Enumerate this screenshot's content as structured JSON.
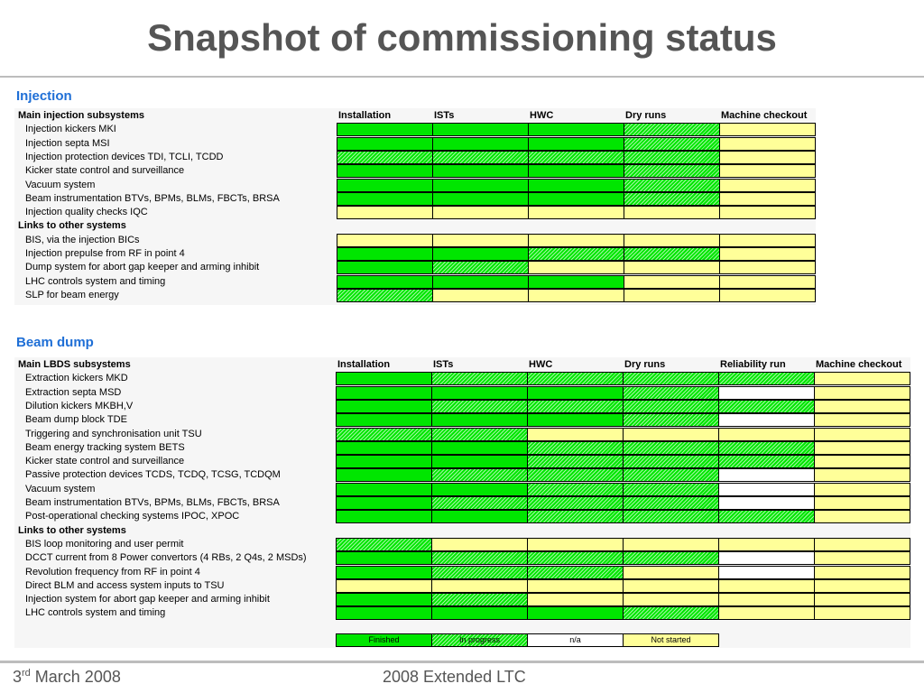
{
  "title": "Snapshot of commissioning status",
  "injection": {
    "label": "Injection",
    "header": "Main injection subsystems",
    "columns": [
      "Installation",
      "ISTs",
      "HWC",
      "Dry runs",
      "Machine checkout"
    ],
    "rows": [
      {
        "type": "item",
        "label": "Injection kickers MKI",
        "status": [
          "F",
          "F",
          "F",
          "P",
          "N"
        ]
      },
      {
        "type": "item",
        "label": "Injection septa MSI",
        "status": [
          "F",
          "F",
          "F",
          "P",
          "N"
        ]
      },
      {
        "type": "item",
        "label": "Injection protection devices TDI, TCLI, TCDD",
        "status": [
          "P",
          "P",
          "P",
          "P",
          "N"
        ]
      },
      {
        "type": "item",
        "label": "Kicker state control and surveillance",
        "status": [
          "F",
          "F",
          "F",
          "P",
          "N"
        ]
      },
      {
        "type": "item",
        "label": "Vacuum system",
        "status": [
          "F",
          "F",
          "F",
          "P",
          "N"
        ]
      },
      {
        "type": "item",
        "label": "Beam instrumentation BTVs, BPMs, BLMs, FBCTs, BRSA",
        "status": [
          "F",
          "F",
          "F",
          "P",
          "N"
        ]
      },
      {
        "type": "item",
        "label": "Injection quality checks IQC",
        "status": [
          "N",
          "N",
          "N",
          "N",
          "N"
        ]
      },
      {
        "type": "group",
        "label": "Links to other systems"
      },
      {
        "type": "item",
        "label": "BIS, via the injection BICs",
        "status": [
          "N",
          "N",
          "N",
          "N",
          "N"
        ]
      },
      {
        "type": "item",
        "label": "Injection prepulse from RF in point 4",
        "status": [
          "F",
          "F",
          "P",
          "P",
          "N"
        ]
      },
      {
        "type": "item",
        "label": "Dump system for abort gap keeper and arming inhibit",
        "status": [
          "F",
          "P",
          "N",
          "N",
          "N"
        ]
      },
      {
        "type": "item",
        "label": "LHC controls system and timing",
        "status": [
          "F",
          "F",
          "F",
          "N",
          "N"
        ]
      },
      {
        "type": "item",
        "label": "SLP for beam energy",
        "status": [
          "P",
          "N",
          "N",
          "N",
          "N"
        ]
      }
    ]
  },
  "beamdump": {
    "label": "Beam dump",
    "header": "Main LBDS subsystems",
    "columns": [
      "Installation",
      "ISTs",
      "HWC",
      "Dry runs",
      "Reliability run",
      "Machine checkout"
    ],
    "rows": [
      {
        "type": "item",
        "label": "Extraction kickers MKD",
        "status": [
          "F",
          "P",
          "P",
          "P",
          "P",
          "N"
        ]
      },
      {
        "type": "item",
        "label": "Extraction septa MSD",
        "status": [
          "F",
          "F",
          "F",
          "P",
          "A",
          "N"
        ]
      },
      {
        "type": "item",
        "label": "Dilution kickers MKBH,V",
        "status": [
          "F",
          "P",
          "P",
          "P",
          "P",
          "N"
        ]
      },
      {
        "type": "item",
        "label": "Beam dump block TDE",
        "status": [
          "F",
          "F",
          "F",
          "P",
          "A",
          "N"
        ]
      },
      {
        "type": "item",
        "label": "Triggering and synchronisation unit TSU",
        "status": [
          "P",
          "P",
          "N",
          "N",
          "N",
          "N"
        ]
      },
      {
        "type": "item",
        "label": "Beam energy tracking system BETS",
        "status": [
          "F",
          "F",
          "P",
          "P",
          "P",
          "N"
        ]
      },
      {
        "type": "item",
        "label": "Kicker state control and surveillance",
        "status": [
          "F",
          "F",
          "P",
          "P",
          "P",
          "N"
        ]
      },
      {
        "type": "item",
        "label": "Passive protection devices TCDS, TCDQ, TCSG, TCDQM",
        "status": [
          "F",
          "P",
          "P",
          "P",
          "A",
          "N"
        ]
      },
      {
        "type": "item",
        "label": "Vacuum system",
        "status": [
          "F",
          "F",
          "P",
          "P",
          "A",
          "N"
        ]
      },
      {
        "type": "item",
        "label": "Beam instrumentation BTVs, BPMs, BLMs, FBCTs, BRSA",
        "status": [
          "F",
          "P",
          "P",
          "P",
          "A",
          "N"
        ]
      },
      {
        "type": "item",
        "label": "Post-operational checking systems IPOC, XPOC",
        "status": [
          "F",
          "F",
          "P",
          "P",
          "P",
          "N"
        ]
      },
      {
        "type": "group",
        "label": "Links to other systems"
      },
      {
        "type": "item",
        "label": "BIS loop monitoring and user permit",
        "status": [
          "P",
          "N",
          "N",
          "N",
          "N",
          "N"
        ]
      },
      {
        "type": "item",
        "label": "DCCT current from 8 Power convertors (4 RBs, 2 Q4s, 2 MSDs)",
        "status": [
          "F",
          "P",
          "P",
          "P",
          "A",
          "N"
        ]
      },
      {
        "type": "item",
        "label": "Revolution frequency from RF in point 4",
        "status": [
          "F",
          "P",
          "P",
          "N",
          "A",
          "N"
        ]
      },
      {
        "type": "item",
        "label": "Direct BLM and access system inputs to TSU",
        "status": [
          "N",
          "N",
          "N",
          "N",
          "N",
          "N"
        ]
      },
      {
        "type": "item",
        "label": "Injection system for abort gap keeper and arming inhibit",
        "status": [
          "F",
          "P",
          "N",
          "N",
          "N",
          "N"
        ]
      },
      {
        "type": "item",
        "label": "LHC controls system and timing",
        "status": [
          "F",
          "F",
          "F",
          "P",
          "N",
          "N"
        ]
      }
    ]
  },
  "legend": [
    {
      "key": "F",
      "label": "Finished"
    },
    {
      "key": "P",
      "label": "In progress"
    },
    {
      "key": "A",
      "label": "n/a"
    },
    {
      "key": "N",
      "label": "Not started"
    }
  ],
  "footer": {
    "date_day": "3",
    "date_sup": "rd",
    "date_rest": " March 2008",
    "center": "2008 Extended LTC"
  }
}
